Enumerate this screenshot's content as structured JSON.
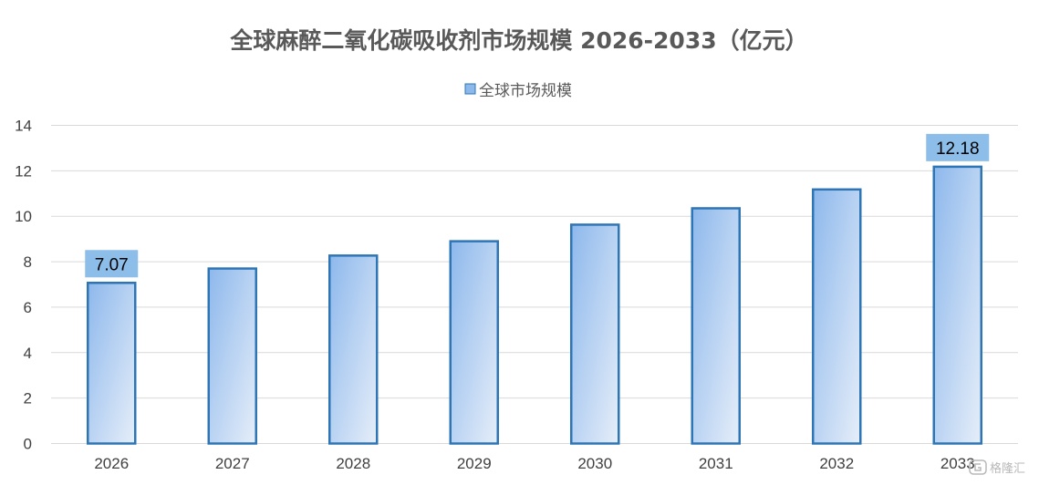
{
  "chart_data": {
    "type": "bar",
    "title": "全球麻醉二氧化碳吸收剂市场规模 2026-2033（亿元）",
    "categories": [
      "2026",
      "2027",
      "2028",
      "2029",
      "2030",
      "2031",
      "2032",
      "2033"
    ],
    "series": [
      {
        "name": "全球市场规模",
        "values": [
          7.07,
          7.7,
          8.27,
          8.9,
          9.63,
          10.35,
          11.18,
          12.18
        ]
      }
    ],
    "data_labels": [
      {
        "category": "2026",
        "text": "7.07"
      },
      {
        "category": "2033",
        "text": "12.18"
      }
    ],
    "ylim": [
      0,
      14
    ],
    "yticks": [
      0,
      2,
      4,
      6,
      8,
      10,
      12,
      14
    ],
    "grid": true,
    "legend_position": "top",
    "colors": {
      "bar_gradient_start": "#8db8ec",
      "bar_gradient_end": "#e6eef9",
      "bar_border": "#2e75b6",
      "label_bg": "#8dbde9",
      "grid": "#d9d9d9",
      "title": "#595959"
    }
  },
  "watermark": {
    "icon": "gelonghui-logo-icon",
    "text": "格隆汇"
  }
}
